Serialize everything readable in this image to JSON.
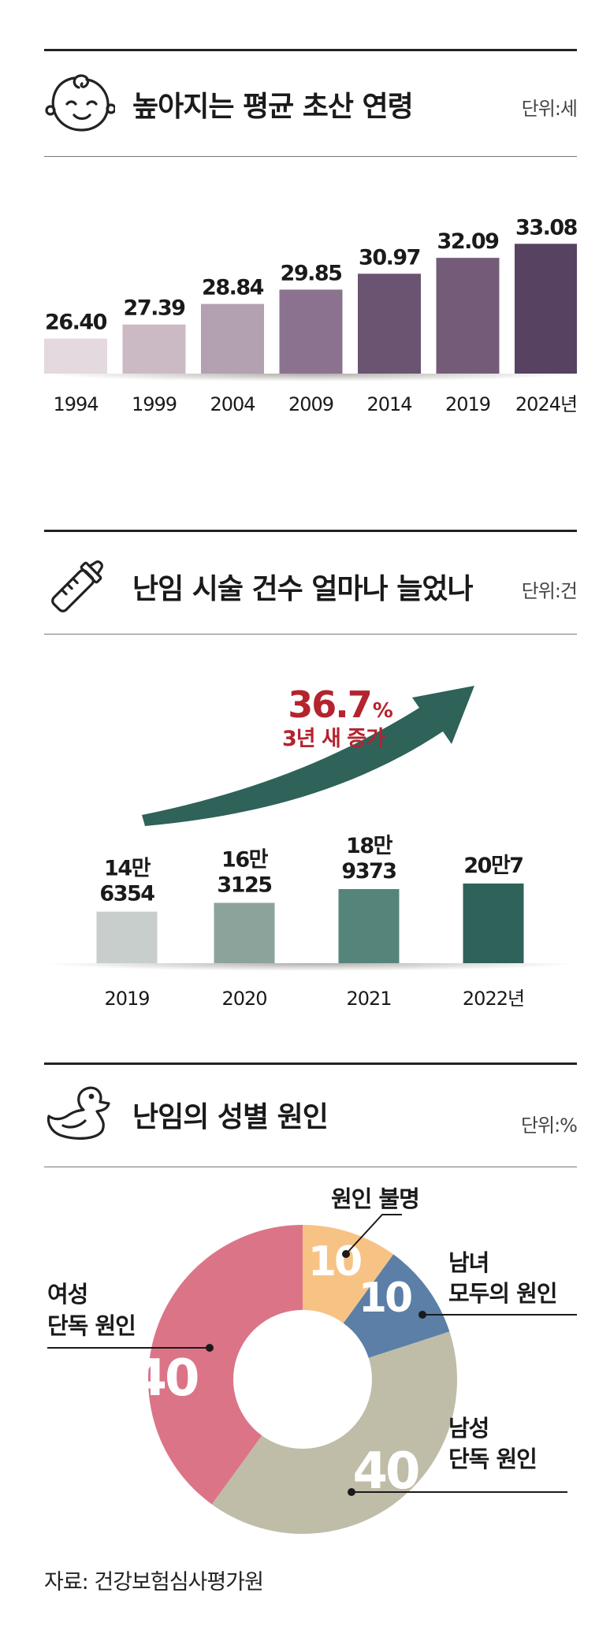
{
  "sections": [
    {
      "title": "높아지는 평균 초산 연령",
      "unit": "단위:세",
      "icon": "baby-face-icon"
    },
    {
      "title": "난임 시술 건수 얼마나 늘었나",
      "unit": "단위:건",
      "icon": "baby-bottle-icon"
    },
    {
      "title": "난임의 성별 원인",
      "unit": "단위:%",
      "icon": "rubber-duck-icon"
    }
  ],
  "chart_data": [
    {
      "type": "bar",
      "categories": [
        "1994",
        "1999",
        "2004",
        "2009",
        "2014",
        "2019",
        "2024년"
      ],
      "values": [
        26.4,
        27.39,
        28.84,
        29.85,
        30.97,
        32.09,
        33.08
      ],
      "value_labels": [
        "26.40",
        "27.39",
        "28.84",
        "29.85",
        "30.97",
        "32.09",
        "33.08"
      ],
      "colors": [
        "#e4d9de",
        "#cbbac4",
        "#b3a0b0",
        "#8b7390",
        "#6a5472",
        "#745c78",
        "#574262"
      ]
    },
    {
      "type": "bar",
      "categories": [
        "2019",
        "2020",
        "2021",
        "2022년"
      ],
      "values": [
        146354,
        163125,
        189373,
        200007
      ],
      "value_labels": [
        [
          "14만",
          "6354"
        ],
        [
          "16만",
          "3125"
        ],
        [
          "18만",
          "9373"
        ],
        [
          "20만7"
        ]
      ],
      "colors": [
        "#c8cecb",
        "#8ca39b",
        "#54847a",
        "#2f6259"
      ],
      "annotation": {
        "value": "36.7",
        "unit": "%",
        "text": "3년 새 증가",
        "color": "#b4232e",
        "arrow_color": "#2f6259"
      }
    },
    {
      "type": "pie",
      "slices": [
        {
          "label": "원인 불명",
          "value": 10,
          "value_label": "10",
          "color": "#f7c385"
        },
        {
          "label": "남녀 모두의 원인",
          "lines": [
            "남녀",
            "모두의 원인"
          ],
          "value": 10,
          "value_label": "10",
          "color": "#5b7fa7"
        },
        {
          "label": "남성 단독 원인",
          "lines": [
            "남성",
            "단독 원인"
          ],
          "value": 40,
          "value_label": "40",
          "color": "#bfbca8"
        },
        {
          "label": "여성 단독 원인",
          "lines": [
            "여성",
            "단독 원인"
          ],
          "value": 40,
          "value_label": "40",
          "color": "#dc7487"
        }
      ]
    }
  ],
  "source": "자료: 건강보험심사평가원"
}
